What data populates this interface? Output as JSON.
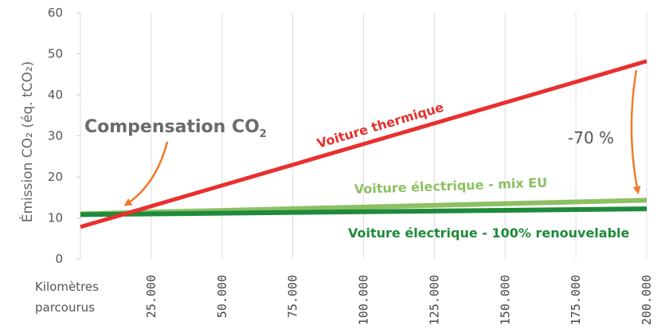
{
  "chart_data": {
    "type": "line",
    "ylabel": "Émission CO₂ (éq. tCO₂)",
    "xlabel_line1": "Kilomètres",
    "xlabel_line2": "parcourus",
    "ylim": [
      0,
      60
    ],
    "xlim": [
      0,
      200000
    ],
    "yticks": [
      "0",
      "10",
      "20",
      "30",
      "40",
      "50",
      "60"
    ],
    "xticks": [
      "25.000",
      "50.000",
      "75.000",
      "100.000",
      "125.000",
      "150.000",
      "175.000",
      "200.000"
    ],
    "xtick_values": [
      25000,
      50000,
      75000,
      100000,
      125000,
      150000,
      175000,
      200000
    ],
    "grid": "vertical",
    "series": [
      {
        "name": "Voiture thermique",
        "color": "#e8302e",
        "x": [
          0,
          200000
        ],
        "y": [
          7.8,
          48.2
        ]
      },
      {
        "name": "Voiture électrique - mix  EU",
        "color": "#8cc063",
        "x": [
          0,
          200000
        ],
        "y": [
          11.0,
          14.3
        ]
      },
      {
        "name": "Voiture électrique - 100% renouvelable",
        "color": "#1f8a3b",
        "x": [
          0,
          200000
        ],
        "y": [
          10.8,
          12.2
        ]
      }
    ],
    "annotations": {
      "compensation": "Compensation CO",
      "compensation_sub": "2",
      "reduction": "-70 %",
      "arrow_color": "#f07a2a"
    }
  }
}
